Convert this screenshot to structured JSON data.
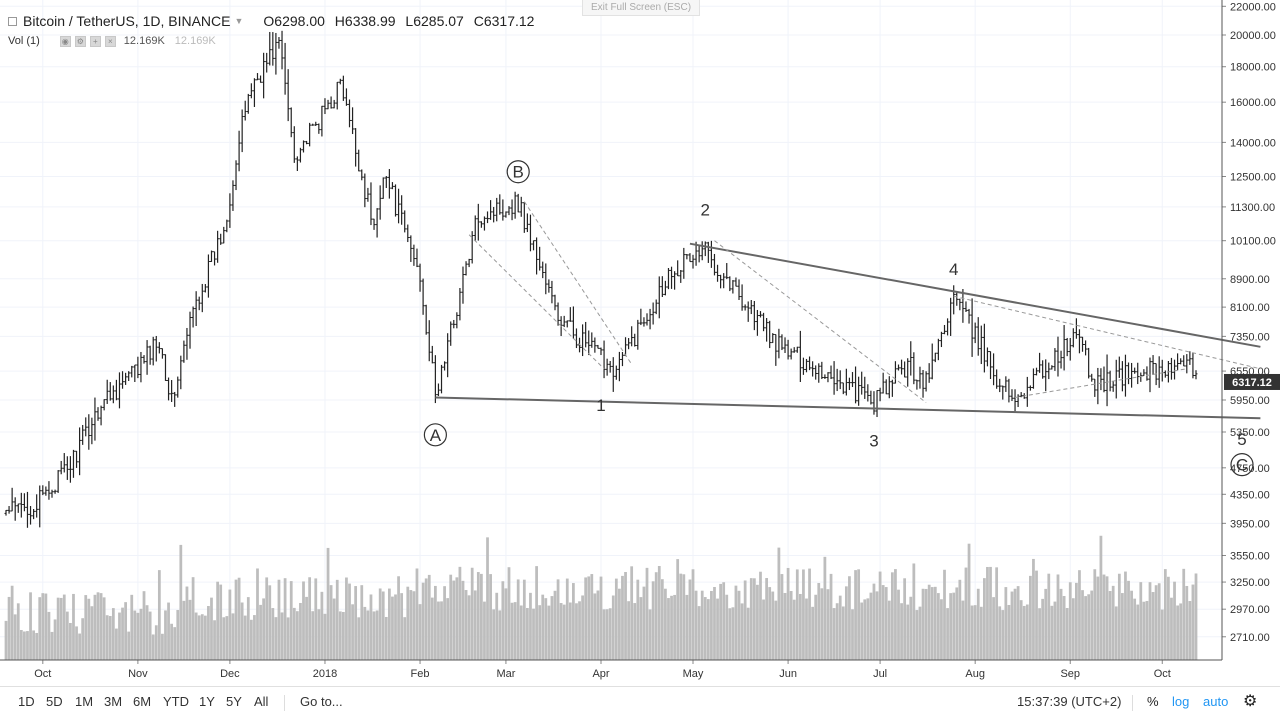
{
  "legend": {
    "symbol": "Bitcoin / TetherUS, 1D, BINANCE",
    "o_label": "O",
    "o_value": "6298.00",
    "h_label": "H",
    "h_value": "6338.99",
    "l_label": "L",
    "l_value": "6285.07",
    "c_label": "C",
    "c_value": "6317.12"
  },
  "vol_legend": {
    "label": "Vol (1)",
    "value": "12.169K",
    "value2": "12.169K"
  },
  "exit_fullscreen_label": "Exit Full Screen (ESC)",
  "toolbar": {
    "ranges": [
      "1D",
      "5D",
      "1M",
      "3M",
      "6M",
      "YTD",
      "1Y",
      "5Y",
      "All"
    ],
    "goto_label": "Go to...",
    "clock": "15:37:39 (UTC+2)",
    "percent_label": "%",
    "log_label": "log",
    "auto_label": "auto",
    "settings_icon": "gear-icon"
  },
  "colors": {
    "accent_blue": "#2196f3",
    "bars": "#222222",
    "volume": "#bdbdbd",
    "trendline": "#757575",
    "price_tag_bg": "#333333"
  },
  "chart_data": {
    "type": "ohlc",
    "symbol": "BTCUSDT",
    "interval": "1D",
    "log_scale": true,
    "grid": true,
    "ylim": [
      2500,
      22000
    ],
    "y_ticks": [
      "22000.00",
      "20000.00",
      "18000.00",
      "16000.00",
      "14000.00",
      "12500.00",
      "11300.00",
      "10100.00",
      "8900.00",
      "8100.00",
      "7350.00",
      "6550.00",
      "5950.00",
      "5350.00",
      "4750.00",
      "4350.00",
      "3950.00",
      "3550.00",
      "3250.00",
      "2970.00",
      "2710.00"
    ],
    "x_ticks": [
      "Oct",
      "Nov",
      "Dec",
      "2018",
      "Feb",
      "Mar",
      "Apr",
      "May",
      "Jun",
      "Jul",
      "Aug",
      "Sep",
      "Oct"
    ],
    "current_price": "6317.12",
    "price_anchors": [
      [
        "2017-09-19",
        4100
      ],
      [
        "2017-09-29",
        4200
      ],
      [
        "2017-10-10",
        4800
      ],
      [
        "2017-10-20",
        5900
      ],
      [
        "2017-11-01",
        6600
      ],
      [
        "2017-11-08",
        7300
      ],
      [
        "2017-11-12",
        5900
      ],
      [
        "2017-11-19",
        8000
      ],
      [
        "2017-11-29",
        10500
      ],
      [
        "2017-12-07",
        16500
      ],
      [
        "2017-12-17",
        19600
      ],
      [
        "2017-12-22",
        13500
      ],
      [
        "2017-12-28",
        14500
      ],
      [
        "2018-01-06",
        17000
      ],
      [
        "2018-01-17",
        10500
      ],
      [
        "2018-01-20",
        12800
      ],
      [
        "2018-02-01",
        9000
      ],
      [
        "2018-02-06",
        6000
      ],
      [
        "2018-02-20",
        11000
      ],
      [
        "2018-03-05",
        11500
      ],
      [
        "2018-03-18",
        7800
      ],
      [
        "2018-03-31",
        6900
      ],
      [
        "2018-04-06",
        6600
      ],
      [
        "2018-04-24",
        9200
      ],
      [
        "2018-05-05",
        9800
      ],
      [
        "2018-05-29",
        7100
      ],
      [
        "2018-06-11",
        6600
      ],
      [
        "2018-06-29",
        5900
      ],
      [
        "2018-07-10",
        6700
      ],
      [
        "2018-07-16",
        6300
      ],
      [
        "2018-07-25",
        8400
      ],
      [
        "2018-08-10",
        6200
      ],
      [
        "2018-08-14",
        6000
      ],
      [
        "2018-09-04",
        7400
      ],
      [
        "2018-09-08",
        6300
      ],
      [
        "2018-09-30",
        6600
      ],
      [
        "2018-10-10",
        6600
      ],
      [
        "2018-10-12",
        6317
      ]
    ],
    "annotations": [
      {
        "label": "A",
        "circled": true,
        "date": "2018-02-06",
        "price": 5300
      },
      {
        "label": "B",
        "circled": true,
        "date": "2018-03-05",
        "price": 12700
      },
      {
        "label": "1",
        "circled": false,
        "date": "2018-04-01",
        "price": 5850
      },
      {
        "label": "2",
        "circled": false,
        "date": "2018-05-05",
        "price": 11200
      },
      {
        "label": "3",
        "circled": false,
        "date": "2018-06-29",
        "price": 5200
      },
      {
        "label": "4",
        "circled": false,
        "date": "2018-07-25",
        "price": 9200
      },
      {
        "label": "5",
        "circled": false,
        "date": "2018-10-27",
        "price": 5230
      },
      {
        "label": "C",
        "circled": true,
        "date": "2018-10-27",
        "price": 4800
      }
    ],
    "trendlines": [
      {
        "style": "solid",
        "from": [
          "2018-02-06",
          6000
        ],
        "to": [
          "2018-11-02",
          5600
        ]
      },
      {
        "style": "solid",
        "from": [
          "2018-04-30",
          10000
        ],
        "to": [
          "2018-11-02",
          7100
        ]
      },
      {
        "style": "dashed",
        "from": [
          "2018-03-07",
          11500
        ],
        "to": [
          "2018-04-11",
          6700
        ]
      },
      {
        "style": "dashed",
        "from": [
          "2018-02-17",
          10300
        ],
        "to": [
          "2018-04-02",
          6600
        ]
      },
      {
        "style": "dashed",
        "from": [
          "2018-05-08",
          10100
        ],
        "to": [
          "2018-07-16",
          5900
        ]
      },
      {
        "style": "dashed",
        "from": [
          "2018-07-25",
          8400
        ],
        "to": [
          "2018-11-02",
          6600
        ]
      },
      {
        "style": "dashed",
        "from": [
          "2018-08-14",
          6000
        ],
        "to": [
          "2018-10-09",
          6600
        ]
      }
    ]
  }
}
